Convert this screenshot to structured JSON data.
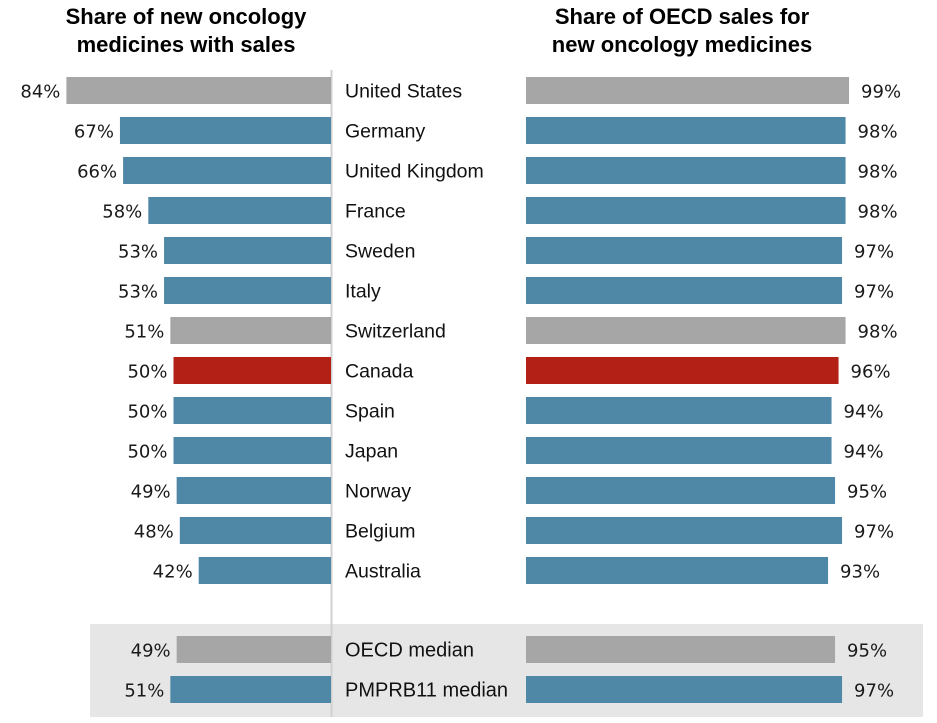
{
  "chart_data": [
    {
      "type": "bar",
      "orientation": "horizontal",
      "direction": "right-to-left",
      "title": "Share of new oncology medicines with sales",
      "title_lines": [
        "Share of new oncology",
        "medicines with sales"
      ],
      "xlabel": "",
      "ylabel": "",
      "xlim": [
        0,
        100
      ],
      "grid": false,
      "categories": [
        "United States",
        "Germany",
        "United Kingdom",
        "France",
        "Sweden",
        "Italy",
        "Switzerland",
        "Canada",
        "Spain",
        "Japan",
        "Norway",
        "Belgium",
        "Australia"
      ],
      "values": [
        84,
        67,
        66,
        58,
        53,
        53,
        51,
        50,
        50,
        50,
        49,
        48,
        42
      ],
      "labels": [
        "84%",
        "67%",
        "66%",
        "58%",
        "53%",
        "53%",
        "51%",
        "50%",
        "50%",
        "50%",
        "49%",
        "48%",
        "42%"
      ],
      "bar_colors": [
        "#a6a6a6",
        "#4f87a6",
        "#4f87a6",
        "#4f87a6",
        "#4f87a6",
        "#4f87a6",
        "#a6a6a6",
        "#b32116",
        "#4f87a6",
        "#4f87a6",
        "#4f87a6",
        "#4f87a6",
        "#4f87a6"
      ],
      "medians": {
        "categories": [
          "OECD median",
          "PMPRB11 median"
        ],
        "values": [
          49,
          51
        ],
        "labels": [
          "49%",
          "51%"
        ],
        "bar_colors": [
          "#a6a6a6",
          "#4f87a6"
        ]
      }
    },
    {
      "type": "bar",
      "orientation": "horizontal",
      "direction": "left-to-right",
      "title": "Share of OECD sales for new oncology medicines",
      "title_lines": [
        "Share of OECD sales for",
        "new oncology medicines"
      ],
      "xlabel": "",
      "ylabel": "",
      "grid": false,
      "categories": [
        "United States",
        "Germany",
        "United Kingdom",
        "France",
        "Sweden",
        "Italy",
        "Switzerland",
        "Canada",
        "Spain",
        "Japan",
        "Norway",
        "Belgium",
        "Australia"
      ],
      "values": [
        99,
        98,
        98,
        98,
        97,
        97,
        98,
        96,
        94,
        94,
        95,
        97,
        93
      ],
      "labels": [
        "99%",
        "98%",
        "98%",
        "98%",
        "97%",
        "97%",
        "98%",
        "96%",
        "94%",
        "94%",
        "95%",
        "97%",
        "93%"
      ],
      "bar_colors": [
        "#a6a6a6",
        "#4f87a6",
        "#4f87a6",
        "#4f87a6",
        "#4f87a6",
        "#4f87a6",
        "#a6a6a6",
        "#b32116",
        "#4f87a6",
        "#4f87a6",
        "#4f87a6",
        "#4f87a6",
        "#4f87a6"
      ],
      "medians": {
        "categories": [
          "OECD median",
          "PMPRB11 median"
        ],
        "values": [
          95,
          97
        ],
        "labels": [
          "95%",
          "97%"
        ],
        "bar_colors": [
          "#a6a6a6",
          "#4f87a6"
        ]
      }
    }
  ],
  "colors": {
    "highlight": "#b32116",
    "default": "#4f87a6",
    "reference": "#a6a6a6",
    "median_panel": "#e6e6e6",
    "divider": "#d0d0d0"
  }
}
